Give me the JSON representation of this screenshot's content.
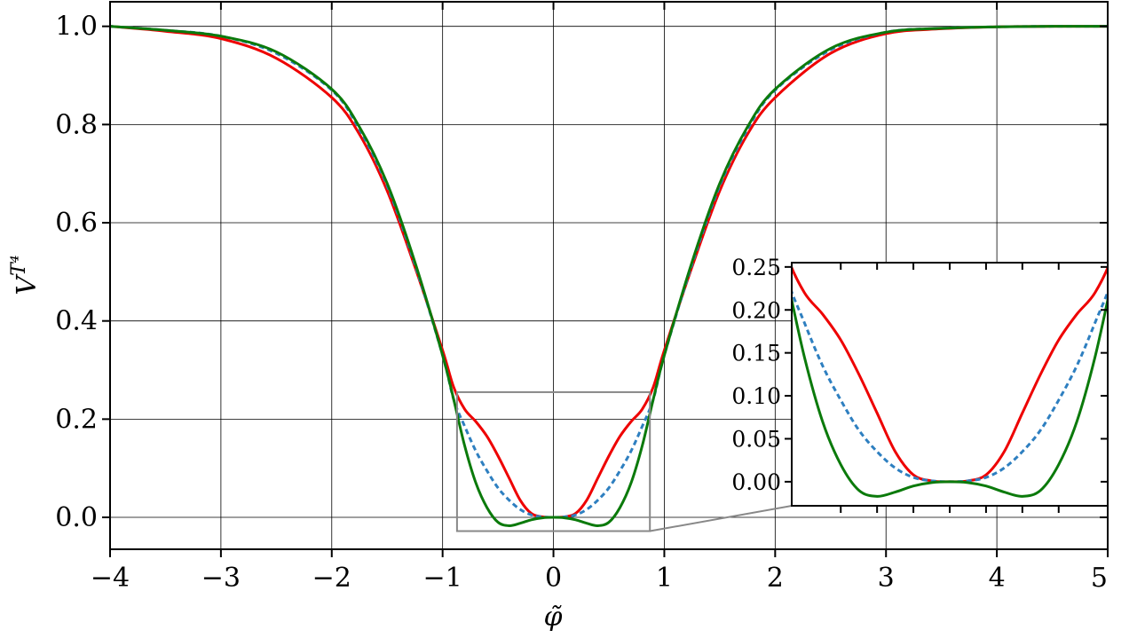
{
  "chart_data": [
    {
      "type": "line",
      "title": "",
      "xlabel": "φ̃",
      "ylabel": "V",
      "ylabel_superscript": "T⁴",
      "xlim": [
        -4,
        5
      ],
      "ylim": [
        -0.065,
        1.05
      ],
      "grid": true,
      "x_ticks": [
        -4,
        -3,
        -2,
        -1,
        0,
        1,
        2,
        3,
        4,
        5
      ],
      "x_tick_labels": [
        "−4",
        "−3",
        "−2",
        "−1",
        "0",
        "1",
        "2",
        "3",
        "4",
        "5"
      ],
      "y_ticks": [
        0.0,
        0.2,
        0.4,
        0.6,
        0.8,
        1.0
      ],
      "y_tick_labels": [
        "0.0",
        "0.2",
        "0.4",
        "0.6",
        "0.8",
        "1.0"
      ],
      "zoom_box": {
        "x_range": [
          -0.87,
          0.87
        ],
        "y_range": [
          -0.028,
          0.255
        ]
      },
      "series": [
        {
          "color": "#ee0000",
          "style": "solid",
          "x": [
            -4,
            -3.5,
            -3,
            -2.5,
            -2,
            -1.75,
            -1.5,
            -1.25,
            -1.0,
            -0.9,
            -0.8,
            -0.7,
            -0.6,
            -0.5,
            -0.4,
            -0.3,
            -0.2,
            -0.1,
            0.0,
            0.1,
            0.2,
            0.3,
            0.4,
            0.5,
            0.6,
            0.7,
            0.8,
            0.9,
            1.0,
            1.25,
            1.5,
            1.75,
            2.0,
            2.5,
            3.0,
            3.5,
            4.0,
            4.5,
            5.0
          ],
          "y": [
            1.0,
            0.99,
            0.975,
            0.935,
            0.855,
            0.78,
            0.665,
            0.51,
            0.34,
            0.265,
            0.22,
            0.195,
            0.165,
            0.125,
            0.08,
            0.035,
            0.008,
            0.001,
            0.0,
            0.001,
            0.008,
            0.035,
            0.08,
            0.125,
            0.165,
            0.195,
            0.22,
            0.265,
            0.34,
            0.51,
            0.665,
            0.78,
            0.855,
            0.945,
            0.985,
            0.995,
            0.999,
            1.0,
            1.0
          ]
        },
        {
          "color": "#2e7fc0",
          "style": "dashed",
          "x": [
            -4,
            -3.5,
            -3,
            -2.5,
            -2,
            -1.75,
            -1.5,
            -1.25,
            -1.0,
            -0.9,
            -0.8,
            -0.7,
            -0.6,
            -0.5,
            -0.4,
            -0.3,
            -0.2,
            -0.1,
            0.0,
            0.1,
            0.2,
            0.3,
            0.4,
            0.5,
            0.6,
            0.7,
            0.8,
            0.9,
            1.0,
            1.25,
            1.5,
            1.75,
            2.0,
            2.5,
            3.0,
            3.5,
            4.0,
            4.5,
            5.0
          ],
          "y": [
            1.0,
            0.992,
            0.98,
            0.945,
            0.87,
            0.79,
            0.675,
            0.515,
            0.33,
            0.24,
            0.185,
            0.135,
            0.095,
            0.06,
            0.035,
            0.016,
            0.005,
            0.001,
            0.0,
            0.001,
            0.005,
            0.016,
            0.035,
            0.06,
            0.095,
            0.135,
            0.185,
            0.24,
            0.33,
            0.515,
            0.675,
            0.79,
            0.87,
            0.952,
            0.988,
            0.996,
            0.999,
            1.0,
            1.0
          ]
        },
        {
          "color": "#0b7a0b",
          "style": "solid",
          "x": [
            -4,
            -3.5,
            -3,
            -2.5,
            -2,
            -1.75,
            -1.5,
            -1.25,
            -1.0,
            -0.9,
            -0.8,
            -0.7,
            -0.6,
            -0.5,
            -0.4,
            -0.3,
            -0.2,
            -0.1,
            0.0,
            0.1,
            0.2,
            0.3,
            0.4,
            0.5,
            0.6,
            0.7,
            0.8,
            0.9,
            1.0,
            1.25,
            1.5,
            1.75,
            2.0,
            2.5,
            3.0,
            3.5,
            4.0,
            4.5,
            5.0
          ],
          "y": [
            1.0,
            0.992,
            0.98,
            0.948,
            0.872,
            0.795,
            0.68,
            0.52,
            0.33,
            0.24,
            0.145,
            0.07,
            0.02,
            -0.01,
            -0.017,
            -0.012,
            -0.005,
            -0.001,
            0.0,
            -0.001,
            -0.005,
            -0.012,
            -0.017,
            -0.01,
            0.02,
            0.07,
            0.145,
            0.24,
            0.33,
            0.52,
            0.68,
            0.795,
            0.872,
            0.955,
            0.988,
            0.996,
            0.999,
            1.0,
            1.0
          ]
        }
      ]
    },
    {
      "type": "line",
      "title": "",
      "xlabel": "",
      "ylabel": "",
      "xlim": [
        -0.87,
        0.87
      ],
      "ylim": [
        -0.028,
        0.255
      ],
      "grid": false,
      "y_ticks": [
        0.0,
        0.05,
        0.1,
        0.15,
        0.2,
        0.25
      ],
      "y_tick_labels": [
        "0.00",
        "0.05",
        "0.10",
        "0.15",
        "0.20",
        "0.25"
      ],
      "x_ticks_minor": [
        -0.6,
        -0.4,
        -0.2,
        0.0,
        0.2,
        0.4,
        0.6
      ],
      "series_ref": "same as main chart series"
    }
  ]
}
